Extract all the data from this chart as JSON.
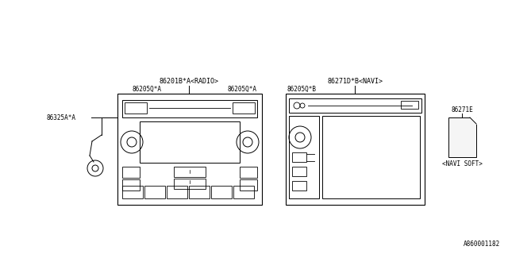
{
  "bg_color": "#ffffff",
  "line_color": "#000000",
  "text_color": "#000000",
  "fig_width": 6.4,
  "fig_height": 3.2,
  "watermark": "A860001182",
  "radio_label": "86201B*A<RADIO>",
  "navi_label": "86271D*B<NAVI>",
  "label_86205QA_left": "86205Q*A",
  "label_86205QA_right": "86205Q*A",
  "label_86325A": "86325A*A",
  "label_86205QB": "86205Q*B",
  "label_86271E": "86271E",
  "navi_soft_label": "<NAVI SOFT>",
  "font_size": 6.0,
  "small_font_size": 5.5
}
